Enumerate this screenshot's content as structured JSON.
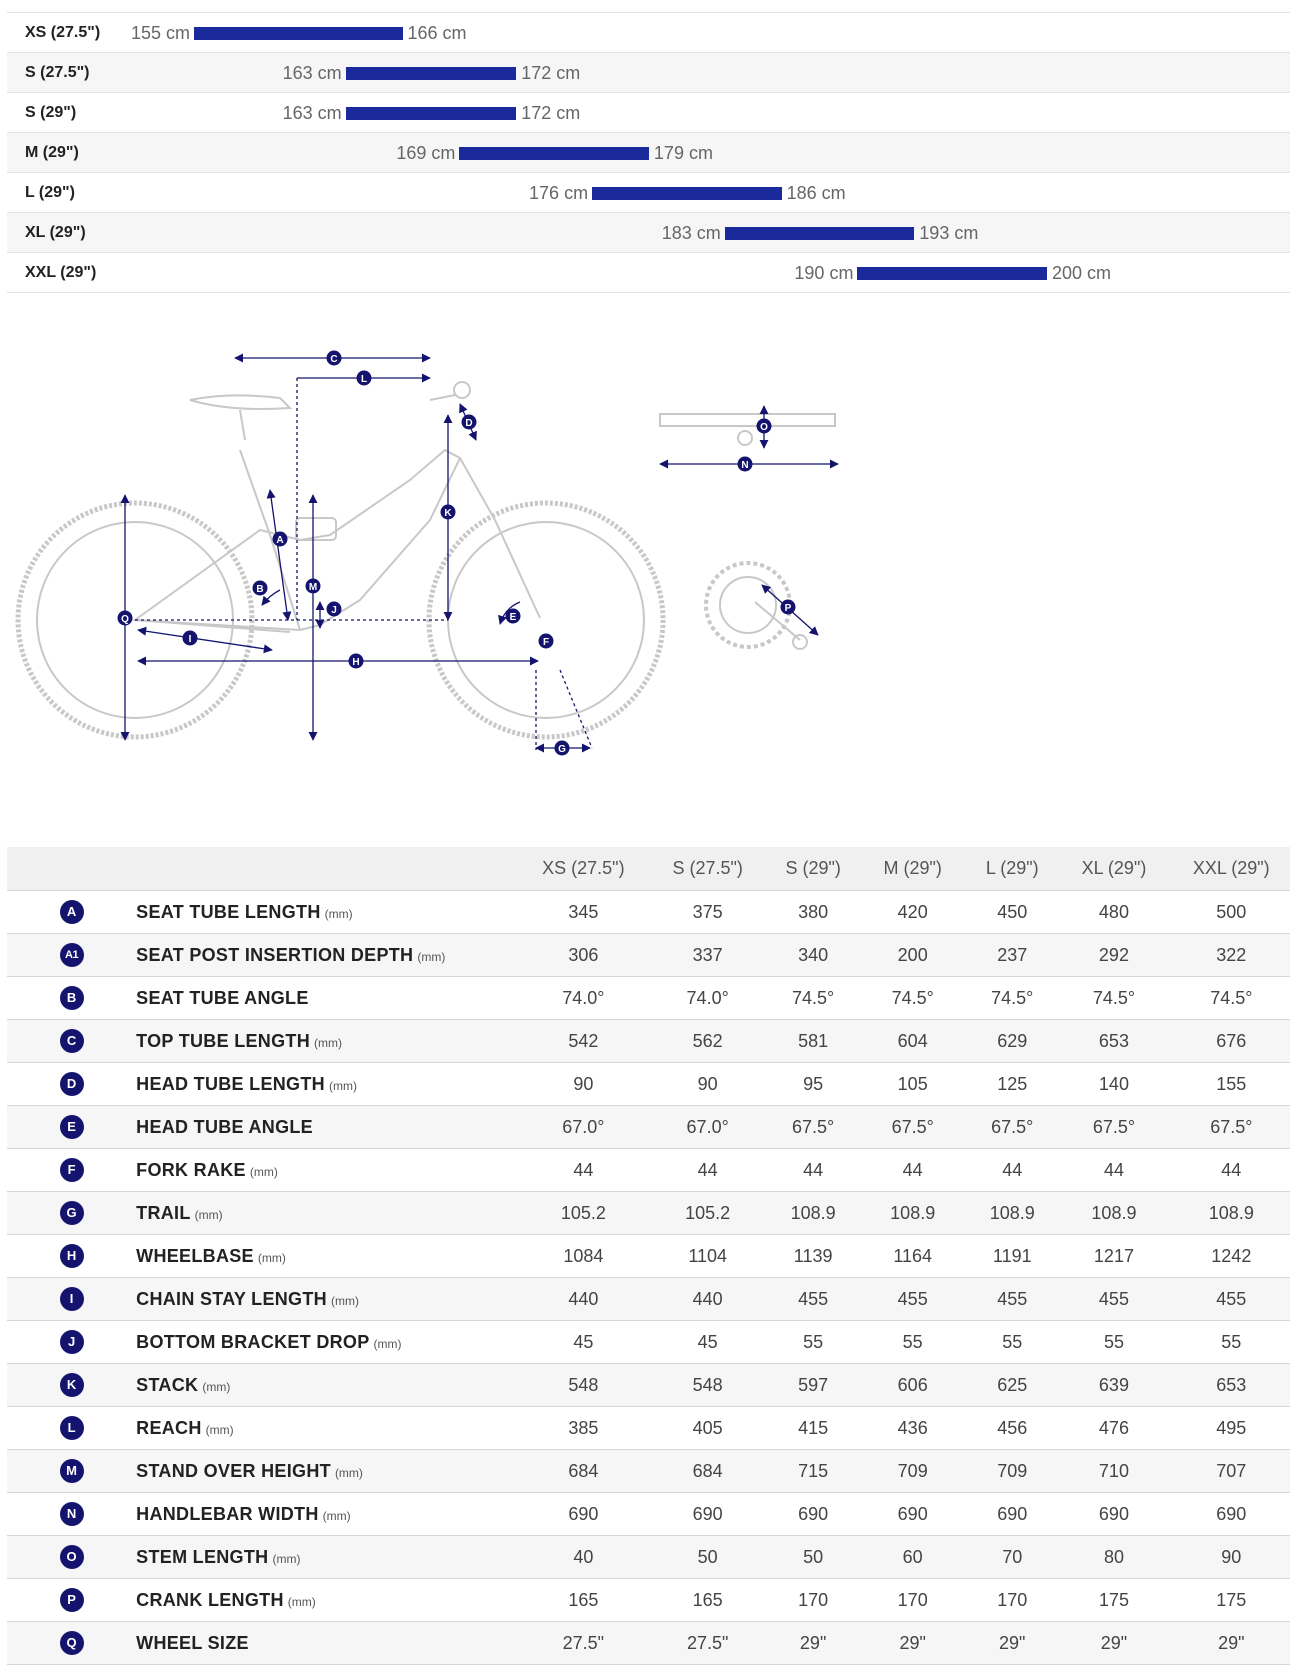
{
  "rider_sizes": [
    {
      "size": "XS (27.5\")",
      "min": "155 cm",
      "max": "166 cm",
      "min_cm": 155,
      "max_cm": 166
    },
    {
      "size": "S (27.5\")",
      "min": "163 cm",
      "max": "172 cm",
      "min_cm": 163,
      "max_cm": 172
    },
    {
      "size": "S (29\")",
      "min": "163 cm",
      "max": "172 cm",
      "min_cm": 163,
      "max_cm": 172
    },
    {
      "size": "M (29\")",
      "min": "169 cm",
      "max": "179 cm",
      "min_cm": 169,
      "max_cm": 179
    },
    {
      "size": "L (29\")",
      "min": "176 cm",
      "max": "186 cm",
      "min_cm": 176,
      "max_cm": 186
    },
    {
      "size": "XL (29\")",
      "min": "183 cm",
      "max": "193 cm",
      "min_cm": 183,
      "max_cm": 193
    },
    {
      "size": "XXL (29\")",
      "min": "190 cm",
      "max": "200 cm",
      "min_cm": 190,
      "max_cm": 200
    }
  ],
  "diagram": {
    "bike_letters": [
      "C",
      "L",
      "D",
      "K",
      "A",
      "B",
      "Q",
      "M",
      "J",
      "I",
      "E",
      "F",
      "H",
      "G"
    ],
    "handlebar_letters": [
      "O",
      "N"
    ],
    "crank_letters": [
      "P"
    ]
  },
  "colors": {
    "accent": "#1b2a9a",
    "badge": "#14146e",
    "line": "#c8c8c8"
  },
  "geometry": {
    "columns": [
      "XS (27.5\")",
      "S (27.5\")",
      "S (29\")",
      "M (29\")",
      "L (29\")",
      "XL (29\")",
      "XXL (29\")"
    ],
    "rows": [
      {
        "id": "A",
        "name": "SEAT TUBE LENGTH",
        "unit": "(mm)",
        "values": [
          "345",
          "375",
          "380",
          "420",
          "450",
          "480",
          "500"
        ]
      },
      {
        "id": "A1",
        "name": "SEAT POST INSERTION DEPTH",
        "unit": "(mm)",
        "values": [
          "306",
          "337",
          "340",
          "200",
          "237",
          "292",
          "322"
        ]
      },
      {
        "id": "B",
        "name": "SEAT TUBE ANGLE",
        "unit": "",
        "values": [
          "74.0°",
          "74.0°",
          "74.5°",
          "74.5°",
          "74.5°",
          "74.5°",
          "74.5°"
        ]
      },
      {
        "id": "C",
        "name": "TOP TUBE LENGTH",
        "unit": "(mm)",
        "values": [
          "542",
          "562",
          "581",
          "604",
          "629",
          "653",
          "676"
        ]
      },
      {
        "id": "D",
        "name": "HEAD TUBE LENGTH",
        "unit": "(mm)",
        "values": [
          "90",
          "90",
          "95",
          "105",
          "125",
          "140",
          "155"
        ]
      },
      {
        "id": "E",
        "name": "HEAD TUBE ANGLE",
        "unit": "",
        "values": [
          "67.0°",
          "67.0°",
          "67.5°",
          "67.5°",
          "67.5°",
          "67.5°",
          "67.5°"
        ]
      },
      {
        "id": "F",
        "name": "FORK RAKE",
        "unit": "(mm)",
        "values": [
          "44",
          "44",
          "44",
          "44",
          "44",
          "44",
          "44"
        ]
      },
      {
        "id": "G",
        "name": "TRAIL",
        "unit": "(mm)",
        "values": [
          "105.2",
          "105.2",
          "108.9",
          "108.9",
          "108.9",
          "108.9",
          "108.9"
        ]
      },
      {
        "id": "H",
        "name": "WHEELBASE",
        "unit": "(mm)",
        "values": [
          "1084",
          "1104",
          "1139",
          "1164",
          "1191",
          "1217",
          "1242"
        ]
      },
      {
        "id": "I",
        "name": "CHAIN STAY LENGTH",
        "unit": "(mm)",
        "values": [
          "440",
          "440",
          "455",
          "455",
          "455",
          "455",
          "455"
        ]
      },
      {
        "id": "J",
        "name": "BOTTOM BRACKET DROP",
        "unit": "(mm)",
        "values": [
          "45",
          "45",
          "55",
          "55",
          "55",
          "55",
          "55"
        ]
      },
      {
        "id": "K",
        "name": "STACK",
        "unit": "(mm)",
        "values": [
          "548",
          "548",
          "597",
          "606",
          "625",
          "639",
          "653"
        ]
      },
      {
        "id": "L",
        "name": "REACH",
        "unit": "(mm)",
        "values": [
          "385",
          "405",
          "415",
          "436",
          "456",
          "476",
          "495"
        ]
      },
      {
        "id": "M",
        "name": "STAND OVER HEIGHT",
        "unit": "(mm)",
        "values": [
          "684",
          "684",
          "715",
          "709",
          "709",
          "710",
          "707"
        ]
      },
      {
        "id": "N",
        "name": "HANDLEBAR WIDTH",
        "unit": "(mm)",
        "values": [
          "690",
          "690",
          "690",
          "690",
          "690",
          "690",
          "690"
        ]
      },
      {
        "id": "O",
        "name": "STEM LENGTH",
        "unit": "(mm)",
        "values": [
          "40",
          "50",
          "50",
          "60",
          "70",
          "80",
          "90"
        ]
      },
      {
        "id": "P",
        "name": "CRANK LENGTH",
        "unit": "(mm)",
        "values": [
          "165",
          "165",
          "170",
          "170",
          "170",
          "175",
          "175"
        ]
      },
      {
        "id": "Q",
        "name": "WHEEL SIZE",
        "unit": "",
        "values": [
          "27.5\"",
          "27.5\"",
          "29\"",
          "29\"",
          "29\"",
          "29\"",
          "29\""
        ]
      }
    ]
  }
}
